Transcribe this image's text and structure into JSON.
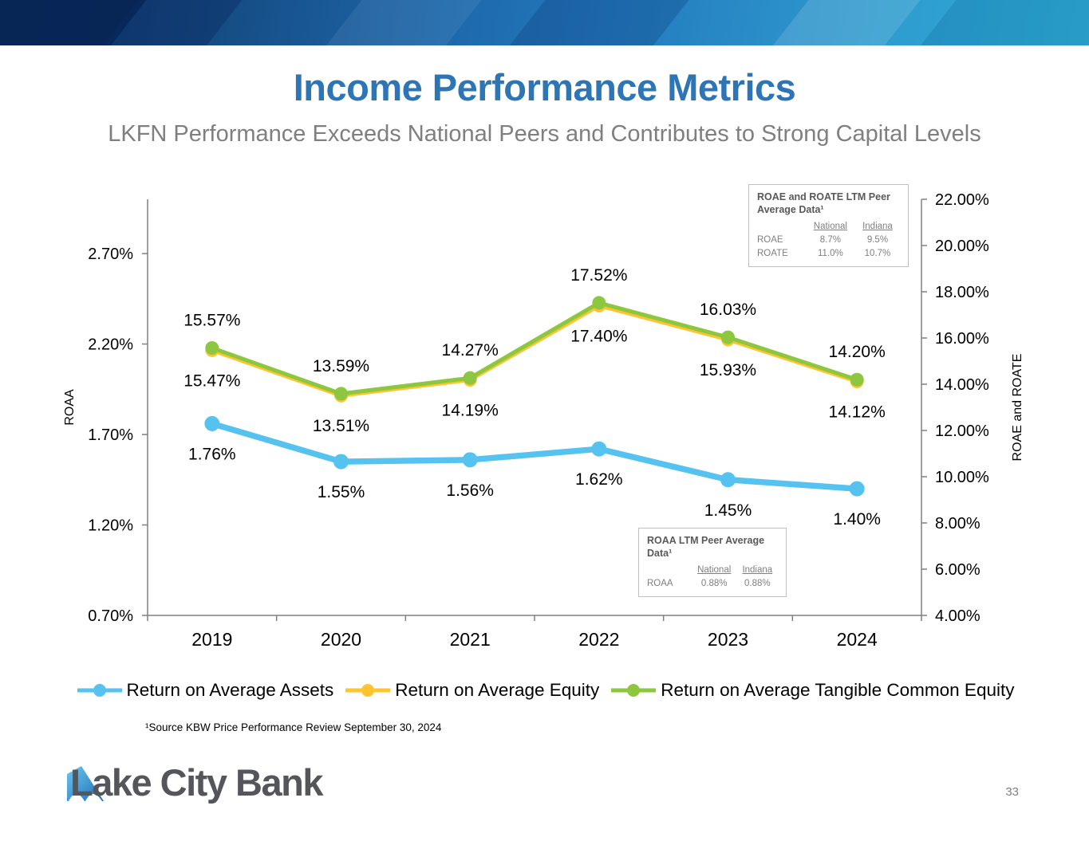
{
  "header": {
    "title": "Income Performance Metrics",
    "subtitle": "LKFN Performance Exceeds National Peers and Contributes to Strong Capital Levels"
  },
  "colors": {
    "title_accent": "#2E75B6",
    "subtitle_gray": "#7F7F7F",
    "roaa_line": "#56C2EF",
    "roae_line": "#FFC42E",
    "roate_line": "#8DC63F"
  },
  "chart_data": {
    "type": "line",
    "categories": [
      "2019",
      "2020",
      "2021",
      "2022",
      "2023",
      "2024"
    ],
    "series": [
      {
        "name": "Return on Average Assets",
        "axis": "left",
        "color": "#56C2EF",
        "label_position": "below",
        "values": [
          1.76,
          1.55,
          1.56,
          1.62,
          1.45,
          1.4
        ],
        "labels": [
          "1.76%",
          "1.55%",
          "1.56%",
          "1.62%",
          "1.45%",
          "1.40%"
        ]
      },
      {
        "name": "Return on Average Equity",
        "axis": "right",
        "color": "#FFC42E",
        "label_position": "below",
        "values": [
          15.47,
          13.51,
          14.19,
          17.4,
          15.93,
          14.12
        ],
        "labels": [
          "15.47%",
          "13.51%",
          "14.19%",
          "17.40%",
          "15.93%",
          "14.12%"
        ]
      },
      {
        "name": "Return on Average Tangible Common Equity",
        "axis": "right",
        "color": "#8DC63F",
        "label_position": "above",
        "values": [
          15.57,
          13.59,
          14.27,
          17.52,
          16.03,
          14.2
        ],
        "labels": [
          "15.57%",
          "13.59%",
          "14.27%",
          "17.52%",
          "16.03%",
          "14.20%"
        ]
      }
    ],
    "left_axis": {
      "label": "ROAA",
      "min": 0.7,
      "max": 3.0,
      "ticks": [
        "0.70%",
        "1.20%",
        "1.70%",
        "2.20%",
        "2.70%"
      ]
    },
    "right_axis": {
      "label": "ROAE and ROATE",
      "min": 4.0,
      "max": 22.0,
      "ticks": [
        "4.00%",
        "6.00%",
        "8.00%",
        "10.00%",
        "12.00%",
        "14.00%",
        "16.00%",
        "18.00%",
        "20.00%",
        "22.00%"
      ]
    },
    "grid": false,
    "legend_position": "bottom"
  },
  "insets": {
    "roae": {
      "title": "ROAE and ROATE LTM Peer Average  Data¹",
      "col_national": "National",
      "col_indiana": "Indiana",
      "rows": [
        {
          "label": "ROAE",
          "national": "8.7%",
          "indiana": "9.5%"
        },
        {
          "label": "ROATE",
          "national": "11.0%",
          "indiana": "10.7%"
        }
      ]
    },
    "roaa": {
      "title": "ROAA LTM Peer Average Data¹",
      "col_national": "National",
      "col_indiana": "Indiana",
      "rows": [
        {
          "label": "ROAA",
          "national": "0.88%",
          "indiana": "0.88%"
        }
      ]
    }
  },
  "footnote": "¹Source KBW Price Performance Review September 30, 2024",
  "footer": {
    "logo_text": "Lake City Bank",
    "page_number": "33"
  }
}
